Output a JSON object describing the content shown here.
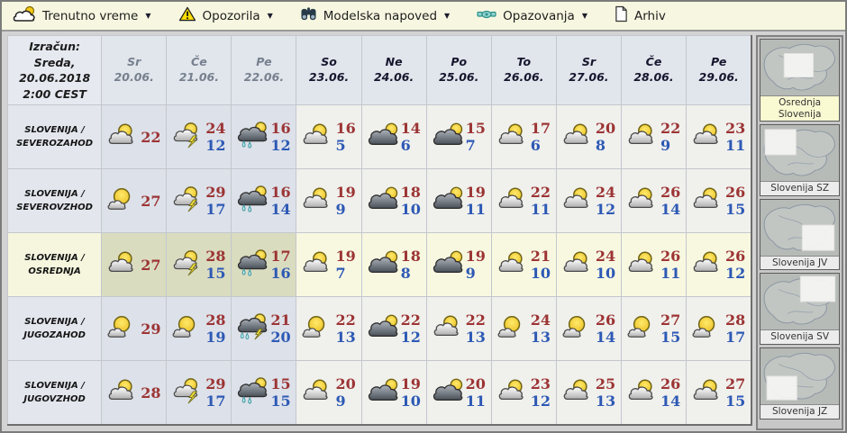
{
  "menu": {
    "caret": "▼",
    "items": [
      {
        "label": "Trenutno vreme",
        "icon": "sun-cloud-icon",
        "dropdown": true
      },
      {
        "label": "Opozorila",
        "icon": "warning-icon",
        "dropdown": true
      },
      {
        "label": "Modelska napoved",
        "icon": "binoculars-icon",
        "dropdown": true
      },
      {
        "label": "Opazovanja",
        "icon": "satellite-icon",
        "dropdown": true
      },
      {
        "label": "Arhiv",
        "icon": "document-icon",
        "dropdown": false
      }
    ]
  },
  "table": {
    "corner_lines": [
      "Izračun:",
      "Sreda,",
      "20.06.2018",
      "2:00 CEST"
    ],
    "columns": [
      {
        "day": "Sr",
        "date": "20.06.",
        "past": true
      },
      {
        "day": "Če",
        "date": "21.06.",
        "past": true
      },
      {
        "day": "Pe",
        "date": "22.06.",
        "past": true
      },
      {
        "day": "So",
        "date": "23.06.",
        "past": false
      },
      {
        "day": "Ne",
        "date": "24.06.",
        "past": false
      },
      {
        "day": "Po",
        "date": "25.06.",
        "past": false
      },
      {
        "day": "To",
        "date": "26.06.",
        "past": false
      },
      {
        "day": "Sr",
        "date": "27.06.",
        "past": false
      },
      {
        "day": "Če",
        "date": "28.06.",
        "past": false
      },
      {
        "day": "Pe",
        "date": "29.06.",
        "past": false
      }
    ],
    "rows": [
      {
        "region_lines": [
          "SLOVENIJA /",
          "SEVEROZAHOD"
        ],
        "highlight": false,
        "cells": [
          {
            "icon": "partly-cloudy",
            "max": "22",
            "min": ""
          },
          {
            "icon": "thunderstorm",
            "max": "24",
            "min": "12"
          },
          {
            "icon": "rain",
            "max": "16",
            "min": "12"
          },
          {
            "icon": "partly-cloudy",
            "max": "16",
            "min": "5"
          },
          {
            "icon": "mostly-cloudy",
            "max": "14",
            "min": "6"
          },
          {
            "icon": "mostly-cloudy",
            "max": "15",
            "min": "7"
          },
          {
            "icon": "partly-cloudy",
            "max": "17",
            "min": "6"
          },
          {
            "icon": "partly-cloudy",
            "max": "20",
            "min": "8"
          },
          {
            "icon": "partly-cloudy",
            "max": "22",
            "min": "9"
          },
          {
            "icon": "partly-cloudy",
            "max": "23",
            "min": "11"
          }
        ]
      },
      {
        "region_lines": [
          "SLOVENIJA /",
          "SEVEROVZHOD"
        ],
        "highlight": false,
        "cells": [
          {
            "icon": "mostly-sunny",
            "max": "27",
            "min": ""
          },
          {
            "icon": "thunderstorm",
            "max": "29",
            "min": "17"
          },
          {
            "icon": "rain",
            "max": "16",
            "min": "14"
          },
          {
            "icon": "partly-cloudy",
            "max": "19",
            "min": "9"
          },
          {
            "icon": "mostly-cloudy",
            "max": "18",
            "min": "10"
          },
          {
            "icon": "mostly-cloudy",
            "max": "19",
            "min": "11"
          },
          {
            "icon": "partly-cloudy",
            "max": "22",
            "min": "11"
          },
          {
            "icon": "partly-cloudy",
            "max": "24",
            "min": "12"
          },
          {
            "icon": "partly-cloudy",
            "max": "26",
            "min": "14"
          },
          {
            "icon": "partly-cloudy",
            "max": "26",
            "min": "15"
          }
        ]
      },
      {
        "region_lines": [
          "SLOVENIJA /",
          "OSREDNJA"
        ],
        "highlight": true,
        "cells": [
          {
            "icon": "partly-cloudy",
            "max": "27",
            "min": ""
          },
          {
            "icon": "thunderstorm",
            "max": "28",
            "min": "15"
          },
          {
            "icon": "rain",
            "max": "17",
            "min": "16"
          },
          {
            "icon": "partly-cloudy",
            "max": "19",
            "min": "7"
          },
          {
            "icon": "mostly-cloudy",
            "max": "18",
            "min": "8"
          },
          {
            "icon": "mostly-cloudy",
            "max": "19",
            "min": "9"
          },
          {
            "icon": "partly-cloudy",
            "max": "21",
            "min": "10"
          },
          {
            "icon": "partly-cloudy",
            "max": "24",
            "min": "10"
          },
          {
            "icon": "partly-cloudy",
            "max": "26",
            "min": "11"
          },
          {
            "icon": "partly-cloudy",
            "max": "26",
            "min": "12"
          }
        ]
      },
      {
        "region_lines": [
          "SLOVENIJA /",
          "JUGOZAHOD"
        ],
        "highlight": false,
        "cells": [
          {
            "icon": "mostly-sunny",
            "max": "29",
            "min": ""
          },
          {
            "icon": "mostly-sunny",
            "max": "28",
            "min": "19"
          },
          {
            "icon": "rain-thunderstorm",
            "max": "21",
            "min": "20"
          },
          {
            "icon": "mostly-sunny",
            "max": "22",
            "min": "13"
          },
          {
            "icon": "mostly-cloudy",
            "max": "22",
            "min": "12"
          },
          {
            "icon": "partly-cloudy",
            "max": "22",
            "min": "13"
          },
          {
            "icon": "mostly-sunny",
            "max": "24",
            "min": "13"
          },
          {
            "icon": "mostly-sunny",
            "max": "26",
            "min": "14"
          },
          {
            "icon": "mostly-sunny",
            "max": "27",
            "min": "15"
          },
          {
            "icon": "mostly-sunny",
            "max": "28",
            "min": "17"
          }
        ]
      },
      {
        "region_lines": [
          "SLOVENIJA /",
          "JUGOVZHOD"
        ],
        "highlight": false,
        "cells": [
          {
            "icon": "partly-cloudy",
            "max": "28",
            "min": ""
          },
          {
            "icon": "thunderstorm",
            "max": "29",
            "min": "17"
          },
          {
            "icon": "rain",
            "max": "15",
            "min": "15"
          },
          {
            "icon": "partly-cloudy",
            "max": "20",
            "min": "9"
          },
          {
            "icon": "mostly-cloudy",
            "max": "19",
            "min": "10"
          },
          {
            "icon": "mostly-cloudy",
            "max": "20",
            "min": "11"
          },
          {
            "icon": "partly-cloudy",
            "max": "23",
            "min": "12"
          },
          {
            "icon": "partly-cloudy",
            "max": "25",
            "min": "13"
          },
          {
            "icon": "partly-cloudy",
            "max": "26",
            "min": "14"
          },
          {
            "icon": "partly-cloudy",
            "max": "27",
            "min": "15"
          }
        ]
      }
    ]
  },
  "sidebar": {
    "maps": [
      {
        "label": "Osrednja Slovenija",
        "selected": true,
        "region": "center"
      },
      {
        "label": "Slovenija SZ",
        "selected": false,
        "region": "nw"
      },
      {
        "label": "Slovenija JV",
        "selected": false,
        "region": "se"
      },
      {
        "label": "Slovenija SV",
        "selected": false,
        "region": "ne"
      },
      {
        "label": "Slovenija JZ",
        "selected": false,
        "region": "sw"
      }
    ]
  },
  "colors": {
    "menu_bg": "#f7f7e1",
    "max_temp": "#9c3434",
    "min_temp": "#2d59b5",
    "highlight_row": "#f8f8e1",
    "past_column": "#dde1e9",
    "warning_yellow": "#ffdf00"
  }
}
